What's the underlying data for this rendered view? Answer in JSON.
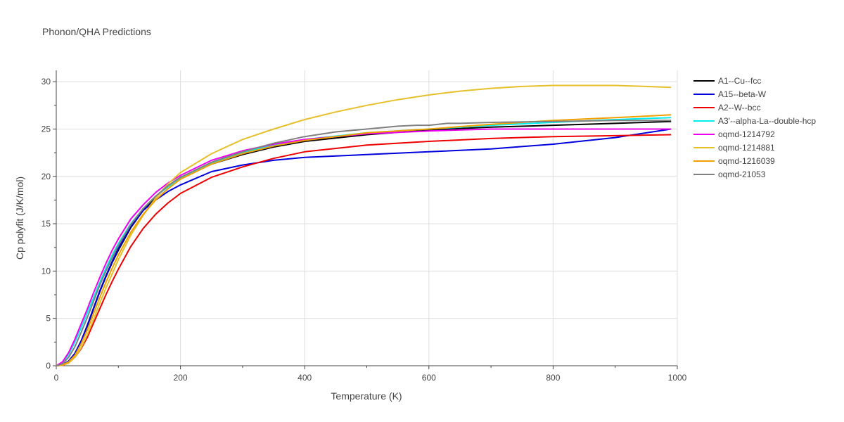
{
  "chart_data": {
    "type": "line",
    "title": "Phonon/QHA Predictions",
    "xlabel": "Temperature (K)",
    "ylabel": "Cp polyfit (J/K/mol)",
    "xlim": [
      0,
      1000
    ],
    "ylim": [
      0,
      31.2
    ],
    "xticks": [
      0,
      200,
      400,
      600,
      800,
      1000
    ],
    "yticks": [
      0,
      5,
      10,
      15,
      20,
      25,
      30
    ],
    "grid": true,
    "legend_position": "top-right",
    "series": [
      {
        "name": "A1--Cu--fcc",
        "color": "#000000",
        "x": [
          0,
          10,
          20,
          30,
          40,
          50,
          60,
          70,
          80,
          90,
          100,
          120,
          140,
          160,
          180,
          200,
          250,
          300,
          350,
          400,
          500,
          600,
          700,
          800,
          900,
          990
        ],
        "y": [
          0,
          0.1,
          0.5,
          1.3,
          2.6,
          4.2,
          6.0,
          7.8,
          9.4,
          10.9,
          12.2,
          14.6,
          16.4,
          17.8,
          19.0,
          19.9,
          21.3,
          22.3,
          23.1,
          23.7,
          24.4,
          24.9,
          25.2,
          25.4,
          25.6,
          25.8
        ]
      },
      {
        "name": "A15--beta-W",
        "color": "#0000dd",
        "x": [
          0,
          10,
          20,
          30,
          40,
          50,
          60,
          70,
          80,
          90,
          100,
          120,
          140,
          160,
          180,
          200,
          250,
          300,
          350,
          400,
          500,
          600,
          700,
          800,
          900,
          990
        ],
        "y": [
          0,
          0.1,
          0.5,
          1.3,
          2.6,
          4.3,
          6.1,
          7.9,
          9.5,
          11.0,
          12.4,
          14.7,
          16.4,
          17.5,
          18.4,
          19.1,
          20.5,
          21.2,
          21.7,
          22.0,
          22.3,
          22.6,
          22.9,
          23.4,
          24.1,
          25.0
        ]
      },
      {
        "name": "A2--W--bcc",
        "color": "#ee0000",
        "x": [
          0,
          10,
          20,
          30,
          40,
          50,
          60,
          70,
          80,
          90,
          100,
          120,
          140,
          160,
          180,
          200,
          250,
          300,
          350,
          400,
          500,
          600,
          700,
          800,
          900,
          990
        ],
        "y": [
          0,
          0.05,
          0.3,
          0.9,
          1.8,
          3.0,
          4.5,
          6.0,
          7.5,
          8.9,
          10.2,
          12.6,
          14.5,
          16.0,
          17.2,
          18.2,
          19.9,
          21.0,
          21.9,
          22.6,
          23.3,
          23.7,
          24.0,
          24.2,
          24.3,
          24.4
        ]
      },
      {
        "name": "A3'--alpha-La--double-hcp",
        "color": "#00eeee",
        "x": [
          0,
          10,
          20,
          30,
          40,
          50,
          60,
          70,
          80,
          90,
          100,
          120,
          140,
          160,
          180,
          200,
          250,
          300,
          350,
          400,
          500,
          600,
          700,
          800,
          900,
          990
        ],
        "y": [
          0,
          0.3,
          1.2,
          2.5,
          4.0,
          5.6,
          7.2,
          8.8,
          10.3,
          11.7,
          12.9,
          15.0,
          16.6,
          17.9,
          18.9,
          19.8,
          21.4,
          22.5,
          23.3,
          23.9,
          24.6,
          25.0,
          25.4,
          25.7,
          26.0,
          26.2
        ]
      },
      {
        "name": "oqmd-1214792",
        "color": "#ee00ee",
        "x": [
          0,
          10,
          20,
          30,
          40,
          50,
          60,
          70,
          80,
          90,
          100,
          120,
          140,
          160,
          180,
          200,
          250,
          300,
          350,
          400,
          500,
          600,
          700,
          800,
          900,
          990
        ],
        "y": [
          0,
          0.4,
          1.4,
          2.8,
          4.4,
          6.0,
          7.7,
          9.3,
          10.8,
          12.2,
          13.4,
          15.5,
          17.0,
          18.3,
          19.3,
          20.1,
          21.7,
          22.7,
          23.4,
          23.9,
          24.5,
          24.8,
          25.0,
          25.0,
          25.0,
          25.0
        ]
      },
      {
        "name": "oqmd-1214881",
        "color": "#e6c02a",
        "x": [
          0,
          10,
          20,
          30,
          40,
          50,
          60,
          70,
          80,
          90,
          100,
          120,
          140,
          160,
          180,
          200,
          250,
          300,
          350,
          400,
          450,
          500,
          550,
          600,
          650,
          700,
          750,
          800,
          850,
          900,
          950,
          990
        ],
        "y": [
          0,
          0.05,
          0.3,
          0.9,
          1.9,
          3.3,
          4.9,
          6.6,
          8.2,
          9.7,
          11.2,
          13.8,
          15.9,
          17.7,
          19.2,
          20.4,
          22.4,
          23.9,
          25.0,
          26.0,
          26.8,
          27.5,
          28.1,
          28.6,
          29.0,
          29.3,
          29.5,
          29.6,
          29.6,
          29.6,
          29.5,
          29.4
        ]
      },
      {
        "name": "oqmd-1216039",
        "color": "#f0a000",
        "x": [
          0,
          10,
          20,
          30,
          40,
          50,
          60,
          70,
          80,
          90,
          100,
          120,
          140,
          160,
          180,
          200,
          250,
          300,
          350,
          400,
          500,
          600,
          700,
          800,
          900,
          990
        ],
        "y": [
          0,
          0.1,
          0.4,
          1.1,
          2.3,
          3.8,
          5.5,
          7.2,
          8.8,
          10.3,
          11.7,
          14.1,
          16.0,
          17.5,
          18.7,
          19.7,
          21.3,
          22.4,
          23.2,
          23.8,
          24.6,
          25.0,
          25.5,
          25.9,
          26.2,
          26.5
        ]
      },
      {
        "name": "oqmd-21053",
        "color": "#808080",
        "x": [
          0,
          10,
          20,
          30,
          40,
          50,
          60,
          70,
          80,
          90,
          100,
          120,
          140,
          160,
          180,
          200,
          250,
          300,
          350,
          400,
          450,
          500,
          550,
          580,
          600,
          630,
          650,
          700,
          800,
          900,
          990
        ],
        "y": [
          0,
          0.2,
          0.9,
          2.0,
          3.5,
          5.1,
          6.8,
          8.5,
          10.0,
          11.4,
          12.7,
          14.9,
          16.6,
          17.9,
          19.0,
          19.9,
          21.5,
          22.6,
          23.5,
          24.2,
          24.7,
          25.0,
          25.3,
          25.4,
          25.4,
          25.6,
          25.6,
          25.7,
          25.8,
          25.9,
          25.9
        ]
      }
    ]
  }
}
